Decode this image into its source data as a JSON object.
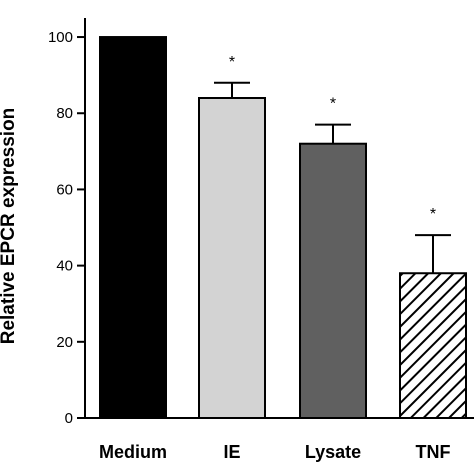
{
  "chart_data": {
    "type": "bar",
    "categories": [
      "Medium",
      "IE",
      "Lysate",
      "TNF"
    ],
    "values": [
      100,
      84,
      72,
      38
    ],
    "errors": [
      0,
      4,
      5,
      10
    ],
    "significance": [
      "",
      "*",
      "*",
      "*"
    ],
    "bar_fills": [
      "#000000",
      "#d3d3d3",
      "#606060",
      "hatch"
    ],
    "ylabel": "Relative EPCR expression",
    "ylim": [
      0,
      105
    ],
    "yticks": [
      0,
      20,
      40,
      60,
      80,
      100
    ],
    "ytick_labels": [
      "0",
      "20",
      "40",
      "60",
      "80",
      "100"
    ],
    "grid": false,
    "legend": "none"
  }
}
